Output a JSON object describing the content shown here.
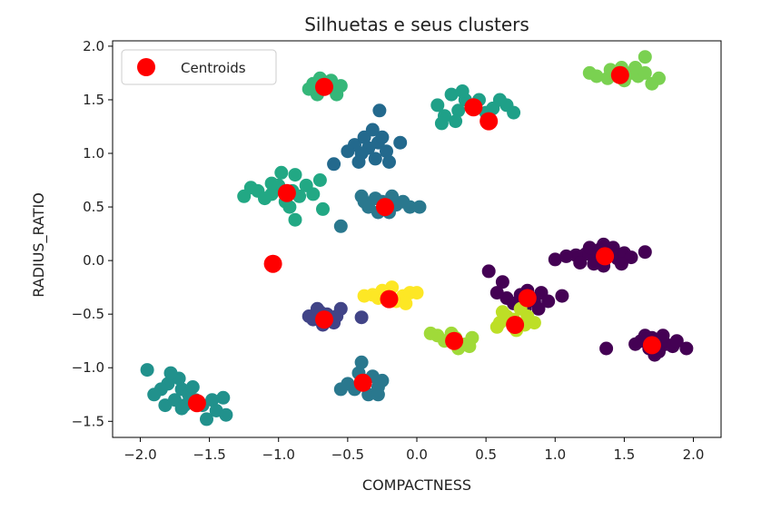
{
  "chart_data": {
    "type": "scatter",
    "title": "Silhuetas e seus clusters",
    "xlabel": "COMPACTNESS",
    "ylabel": "RADIUS_RATIO",
    "xlim": [
      -2.2,
      2.2
    ],
    "ylim": [
      -1.65,
      2.05
    ],
    "xticks": [
      -2.0,
      -1.5,
      -1.0,
      -0.5,
      0.0,
      0.5,
      1.0,
      1.5,
      2.0
    ],
    "xtick_labels": [
      "−2.0",
      "−1.5",
      "−1.0",
      "−0.5",
      "0.0",
      "0.5",
      "1.0",
      "1.5",
      "2.0"
    ],
    "yticks": [
      -1.5,
      -1.0,
      -0.5,
      0.0,
      0.5,
      1.0,
      1.5,
      2.0
    ],
    "ytick_labels": [
      "−1.5",
      "−1.0",
      "−0.5",
      "0.0",
      "0.5",
      "1.0",
      "1.5",
      "2.0"
    ],
    "grid": false,
    "legend": {
      "position": "top-left",
      "entries": [
        {
          "label": "Centroids",
          "color": "#ff0000"
        }
      ]
    },
    "clusters": [
      {
        "color": "#440154",
        "points": [
          [
            1.3,
            0.03
          ],
          [
            1.22,
            0.06
          ],
          [
            1.38,
            0.08
          ],
          [
            1.45,
            0.02
          ],
          [
            1.28,
            -0.03
          ],
          [
            1.5,
            0.07
          ],
          [
            1.35,
            -0.05
          ],
          [
            1.25,
            0.12
          ],
          [
            1.42,
            0.12
          ],
          [
            1.15,
            0.05
          ],
          [
            1.55,
            0.03
          ],
          [
            1.65,
            0.08
          ],
          [
            1.35,
            0.15
          ],
          [
            1.18,
            -0.02
          ],
          [
            1.0,
            0.01
          ],
          [
            1.08,
            0.04
          ],
          [
            1.48,
            -0.03
          ],
          [
            1.32,
            0.1
          ]
        ]
      },
      {
        "color": "#440154",
        "points": [
          [
            1.7,
            -0.72
          ],
          [
            1.8,
            -0.78
          ],
          [
            1.62,
            -0.75
          ],
          [
            1.75,
            -0.85
          ],
          [
            1.85,
            -0.8
          ],
          [
            1.68,
            -0.82
          ],
          [
            1.58,
            -0.78
          ],
          [
            1.78,
            -0.7
          ],
          [
            1.72,
            -0.88
          ],
          [
            1.88,
            -0.75
          ],
          [
            1.95,
            -0.82
          ],
          [
            1.37,
            -0.82
          ],
          [
            1.65,
            -0.7
          ]
        ]
      },
      {
        "color": "#440154",
        "points": [
          [
            0.75,
            -0.32
          ],
          [
            0.85,
            -0.38
          ],
          [
            0.65,
            -0.35
          ],
          [
            0.8,
            -0.28
          ],
          [
            0.9,
            -0.3
          ],
          [
            0.7,
            -0.4
          ],
          [
            0.58,
            -0.3
          ],
          [
            0.95,
            -0.38
          ],
          [
            0.78,
            -0.45
          ],
          [
            1.05,
            -0.33
          ],
          [
            0.52,
            -0.1
          ],
          [
            0.62,
            -0.2
          ],
          [
            0.88,
            -0.45
          ]
        ]
      },
      {
        "color": "#414487",
        "points": [
          [
            -0.65,
            -0.5
          ],
          [
            -0.75,
            -0.55
          ],
          [
            -0.6,
            -0.58
          ],
          [
            -0.7,
            -0.48
          ],
          [
            -0.58,
            -0.52
          ],
          [
            -0.78,
            -0.52
          ],
          [
            -0.68,
            -0.6
          ],
          [
            -0.55,
            -0.45
          ],
          [
            -0.4,
            -0.53
          ],
          [
            -0.72,
            -0.45
          ]
        ]
      },
      {
        "color": "#2a788e",
        "points": [
          [
            -0.38,
            -1.12
          ],
          [
            -0.28,
            -1.18
          ],
          [
            -0.45,
            -1.2
          ],
          [
            -0.32,
            -1.08
          ],
          [
            -0.5,
            -1.15
          ],
          [
            -0.25,
            -1.12
          ],
          [
            -0.42,
            -1.05
          ],
          [
            -0.35,
            -1.25
          ],
          [
            -0.55,
            -1.2
          ],
          [
            -0.28,
            -1.25
          ],
          [
            -0.4,
            -0.95
          ]
        ]
      },
      {
        "color": "#2a788e",
        "points": [
          [
            -0.25,
            0.55
          ],
          [
            -0.35,
            0.5
          ],
          [
            -0.15,
            0.52
          ],
          [
            -0.3,
            0.58
          ],
          [
            -0.2,
            0.45
          ],
          [
            -0.38,
            0.55
          ],
          [
            -0.1,
            0.55
          ],
          [
            -0.28,
            0.45
          ],
          [
            -0.4,
            0.6
          ],
          [
            -0.18,
            0.6
          ],
          [
            -0.05,
            0.5
          ],
          [
            0.02,
            0.5
          ],
          [
            -0.55,
            0.32
          ]
        ]
      },
      {
        "color": "#23698d",
        "points": [
          [
            -0.35,
            1.05
          ],
          [
            -0.28,
            1.1
          ],
          [
            -0.4,
            1.0
          ],
          [
            -0.22,
            1.02
          ],
          [
            -0.3,
            0.95
          ],
          [
            -0.45,
            1.08
          ],
          [
            -0.25,
            1.15
          ],
          [
            -0.38,
            1.15
          ],
          [
            -0.2,
            0.92
          ],
          [
            -0.32,
            1.22
          ],
          [
            -0.27,
            1.4
          ],
          [
            -0.5,
            1.02
          ],
          [
            -0.12,
            1.1
          ],
          [
            -0.42,
            0.92
          ],
          [
            -0.6,
            0.9
          ]
        ]
      },
      {
        "color": "#21918c",
        "points": [
          [
            -1.7,
            -1.2
          ],
          [
            -1.8,
            -1.15
          ],
          [
            -1.65,
            -1.25
          ],
          [
            -1.75,
            -1.3
          ],
          [
            -1.85,
            -1.2
          ],
          [
            -1.6,
            -1.3
          ],
          [
            -1.72,
            -1.1
          ],
          [
            -1.9,
            -1.25
          ],
          [
            -1.55,
            -1.35
          ],
          [
            -1.68,
            -1.35
          ],
          [
            -1.78,
            -1.05
          ],
          [
            -1.62,
            -1.18
          ],
          [
            -1.48,
            -1.3
          ],
          [
            -1.45,
            -1.4
          ],
          [
            -1.52,
            -1.48
          ],
          [
            -1.4,
            -1.28
          ],
          [
            -1.38,
            -1.44
          ],
          [
            -1.95,
            -1.02
          ],
          [
            -1.82,
            -1.35
          ],
          [
            -1.7,
            -1.38
          ]
        ]
      },
      {
        "color": "#1fa088",
        "points": [
          [
            0.4,
            1.45
          ],
          [
            0.3,
            1.4
          ],
          [
            0.5,
            1.38
          ],
          [
            0.35,
            1.5
          ],
          [
            0.25,
            1.55
          ],
          [
            0.45,
            1.5
          ],
          [
            0.15,
            1.45
          ],
          [
            0.55,
            1.42
          ],
          [
            0.65,
            1.45
          ],
          [
            0.7,
            1.38
          ],
          [
            0.2,
            1.35
          ],
          [
            0.18,
            1.28
          ],
          [
            0.28,
            1.3
          ],
          [
            0.6,
            1.5
          ],
          [
            0.33,
            1.58
          ]
        ]
      },
      {
        "color": "#22a884",
        "points": [
          [
            -0.9,
            0.65
          ],
          [
            -1.0,
            0.7
          ],
          [
            -0.85,
            0.6
          ],
          [
            -1.05,
            0.62
          ],
          [
            -0.95,
            0.55
          ],
          [
            -1.15,
            0.65
          ],
          [
            -0.8,
            0.7
          ],
          [
            -0.88,
            0.8
          ],
          [
            -1.1,
            0.58
          ],
          [
            -1.2,
            0.68
          ],
          [
            -1.25,
            0.6
          ],
          [
            -0.75,
            0.62
          ],
          [
            -0.7,
            0.75
          ],
          [
            -0.92,
            0.5
          ],
          [
            -0.88,
            0.38
          ],
          [
            -0.68,
            0.48
          ],
          [
            -1.05,
            0.72
          ],
          [
            -0.98,
            0.82
          ]
        ]
      },
      {
        "color": "#35b779",
        "points": [
          [
            -0.68,
            1.62
          ],
          [
            -0.75,
            1.65
          ],
          [
            -0.6,
            1.6
          ],
          [
            -0.72,
            1.55
          ],
          [
            -0.62,
            1.68
          ],
          [
            -0.58,
            1.55
          ],
          [
            -0.78,
            1.6
          ],
          [
            -0.55,
            1.63
          ],
          [
            -0.7,
            1.7
          ]
        ]
      },
      {
        "color": "#7ad151",
        "points": [
          [
            1.45,
            1.72
          ],
          [
            1.55,
            1.75
          ],
          [
            1.38,
            1.7
          ],
          [
            1.5,
            1.68
          ],
          [
            1.6,
            1.72
          ],
          [
            1.4,
            1.78
          ],
          [
            1.3,
            1.72
          ],
          [
            1.58,
            1.8
          ],
          [
            1.65,
            1.75
          ],
          [
            1.75,
            1.7
          ],
          [
            1.25,
            1.75
          ],
          [
            1.7,
            1.65
          ],
          [
            1.65,
            1.9
          ],
          [
            1.48,
            1.8
          ]
        ]
      },
      {
        "color": "#a0da39",
        "points": [
          [
            0.28,
            -0.72
          ],
          [
            0.2,
            -0.75
          ],
          [
            0.35,
            -0.78
          ],
          [
            0.15,
            -0.7
          ],
          [
            0.3,
            -0.82
          ],
          [
            0.4,
            -0.72
          ],
          [
            0.1,
            -0.68
          ],
          [
            0.38,
            -0.8
          ],
          [
            0.25,
            -0.68
          ]
        ]
      },
      {
        "color": "#bddf26",
        "points": [
          [
            0.7,
            -0.55
          ],
          [
            0.78,
            -0.6
          ],
          [
            0.65,
            -0.52
          ],
          [
            0.6,
            -0.58
          ],
          [
            0.8,
            -0.52
          ],
          [
            0.72,
            -0.65
          ],
          [
            0.62,
            -0.48
          ],
          [
            0.85,
            -0.58
          ],
          [
            0.58,
            -0.62
          ],
          [
            0.75,
            -0.45
          ]
        ]
      },
      {
        "color": "#fde725",
        "points": [
          [
            -0.2,
            -0.3
          ],
          [
            -0.28,
            -0.35
          ],
          [
            -0.15,
            -0.38
          ],
          [
            -0.25,
            -0.28
          ],
          [
            -0.1,
            -0.33
          ],
          [
            -0.32,
            -0.32
          ],
          [
            -0.18,
            -0.25
          ],
          [
            -0.05,
            -0.3
          ],
          [
            -0.08,
            -0.4
          ],
          [
            -0.38,
            -0.33
          ],
          [
            0.0,
            -0.3
          ]
        ]
      }
    ],
    "centroids": {
      "color": "#ff0000",
      "points": [
        [
          -0.67,
          1.62
        ],
        [
          1.47,
          1.73
        ],
        [
          0.41,
          1.43
        ],
        [
          0.52,
          1.3
        ],
        [
          -0.94,
          0.63
        ],
        [
          -0.23,
          0.5
        ],
        [
          -1.04,
          -0.03
        ],
        [
          1.36,
          0.04
        ],
        [
          -0.2,
          -0.36
        ],
        [
          0.8,
          -0.35
        ],
        [
          -0.67,
          -0.55
        ],
        [
          0.71,
          -0.6
        ],
        [
          0.27,
          -0.75
        ],
        [
          1.7,
          -0.79
        ],
        [
          -0.39,
          -1.14
        ],
        [
          -1.59,
          -1.33
        ]
      ]
    }
  }
}
